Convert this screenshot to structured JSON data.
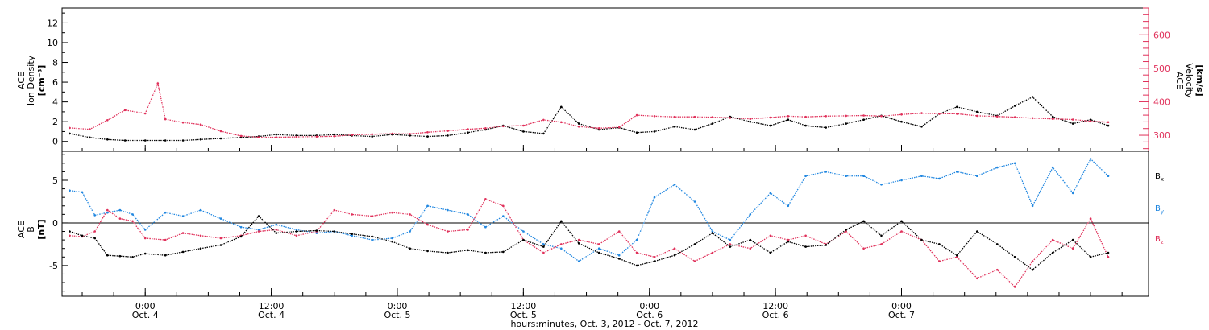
{
  "colors": {
    "black": "#000000",
    "red": "#e0305a",
    "blue": "#1f86e0",
    "background": "#ffffff"
  },
  "chart_data": [
    {
      "type": "scatter",
      "panel": "top",
      "ylabel_lines": [
        "ACE",
        "Ion Density",
        "[cm⁻³]"
      ],
      "y2label_lines": [
        "ACE",
        "Velocity",
        "[km/s]"
      ],
      "ylim": [
        -1,
        13.5
      ],
      "yticks": [
        "0",
        "2",
        "4",
        "6",
        "8",
        "10",
        "12"
      ],
      "y2lim": [
        252,
        680
      ],
      "y2ticks": [
        "300",
        "400",
        "500",
        "600"
      ],
      "series": [
        {
          "axis": "left",
          "color": "#000000",
          "x": [
            -0.3,
            -0.22,
            -0.15,
            -0.08,
            0.0,
            0.08,
            0.15,
            0.22,
            0.3,
            0.38,
            0.45,
            0.52,
            0.6,
            0.68,
            0.75,
            0.82,
            0.9,
            0.98,
            1.05,
            1.12,
            1.2,
            1.28,
            1.35,
            1.42,
            1.5,
            1.58,
            1.65,
            1.72,
            1.8,
            1.88,
            1.95,
            2.02,
            2.1,
            2.18,
            2.25,
            2.32,
            2.4,
            2.48,
            2.55,
            2.62,
            2.7,
            2.78,
            2.85,
            2.92,
            3.0,
            3.08,
            3.15,
            3.22,
            3.3,
            3.38,
            3.45,
            3.52,
            3.6,
            3.68,
            3.75,
            3.82
          ],
          "y": [
            0.8,
            0.4,
            0.2,
            0.1,
            0.1,
            0.1,
            0.1,
            0.2,
            0.3,
            0.4,
            0.5,
            0.7,
            0.6,
            0.6,
            0.7,
            0.6,
            0.5,
            0.7,
            0.6,
            0.5,
            0.6,
            0.9,
            1.2,
            1.6,
            1.0,
            0.8,
            3.5,
            1.8,
            1.2,
            1.4,
            0.9,
            1.0,
            1.5,
            1.2,
            1.8,
            2.5,
            2.0,
            1.6,
            2.2,
            1.6,
            1.4,
            1.8,
            2.2,
            2.6,
            2.0,
            1.5,
            2.8,
            3.5,
            3.0,
            2.6,
            3.6,
            4.5,
            2.5,
            1.8,
            2.2,
            1.6
          ]
        },
        {
          "axis": "right",
          "color": "#e0305a",
          "x": [
            -0.3,
            -0.22,
            -0.15,
            -0.08,
            0.0,
            0.05,
            0.08,
            0.15,
            0.22,
            0.3,
            0.38,
            0.45,
            0.52,
            0.6,
            0.68,
            0.75,
            0.82,
            0.9,
            0.98,
            1.05,
            1.12,
            1.2,
            1.28,
            1.35,
            1.42,
            1.5,
            1.58,
            1.65,
            1.72,
            1.8,
            1.88,
            1.95,
            2.02,
            2.1,
            2.18,
            2.25,
            2.32,
            2.4,
            2.48,
            2.55,
            2.62,
            2.7,
            2.78,
            2.85,
            2.92,
            3.0,
            3.08,
            3.15,
            3.22,
            3.3,
            3.38,
            3.45,
            3.52,
            3.6,
            3.68,
            3.75,
            3.82
          ],
          "y": [
            322,
            318,
            345,
            375,
            365,
            455,
            348,
            338,
            332,
            312,
            298,
            294,
            294,
            295,
            296,
            297,
            301,
            303,
            305,
            304,
            309,
            313,
            318,
            321,
            327,
            329,
            346,
            339,
            326,
            321,
            324,
            360,
            357,
            355,
            355,
            354,
            352,
            349,
            353,
            357,
            355,
            357,
            358,
            359,
            357,
            362,
            366,
            364,
            364,
            358,
            356,
            354,
            351,
            349,
            347,
            342,
            339
          ]
        }
      ]
    },
    {
      "type": "scatter",
      "panel": "bottom",
      "ylabel_lines": [
        "ACE",
        "B",
        "[nT]"
      ],
      "ylim": [
        -8.6,
        8.4
      ],
      "yticks": [
        "-5",
        "0",
        "5"
      ],
      "legend_location": "right",
      "legend": [
        {
          "label": "B",
          "sub": "x",
          "color": "#000000"
        },
        {
          "label": "B",
          "sub": "y",
          "color": "#1f86e0"
        },
        {
          "label": "B",
          "sub": "z",
          "color": "#e0305a"
        }
      ],
      "series": [
        {
          "name": "Bx",
          "color": "#000000",
          "x": [
            -0.3,
            -0.25,
            -0.2,
            -0.15,
            -0.1,
            -0.05,
            0.0,
            0.08,
            0.15,
            0.22,
            0.3,
            0.38,
            0.45,
            0.52,
            0.6,
            0.68,
            0.75,
            0.82,
            0.9,
            0.98,
            1.05,
            1.12,
            1.2,
            1.28,
            1.35,
            1.42,
            1.5,
            1.58,
            1.65,
            1.72,
            1.8,
            1.88,
            1.95,
            2.02,
            2.1,
            2.18,
            2.25,
            2.32,
            2.4,
            2.48,
            2.55,
            2.62,
            2.7,
            2.78,
            2.85,
            2.92,
            3.0,
            3.08,
            3.15,
            3.22,
            3.3,
            3.38,
            3.45,
            3.52,
            3.6,
            3.68,
            3.75,
            3.82
          ],
          "y": [
            -1.0,
            -1.5,
            -1.8,
            -3.8,
            -3.9,
            -4.0,
            -3.6,
            -3.8,
            -3.4,
            -3.0,
            -2.6,
            -1.6,
            0.8,
            -1.2,
            -1.0,
            -0.9,
            -1.0,
            -1.3,
            -1.6,
            -2.2,
            -3.0,
            -3.3,
            -3.5,
            -3.2,
            -3.5,
            -3.4,
            -2.0,
            -2.8,
            0.2,
            -2.4,
            -3.5,
            -4.2,
            -5.0,
            -4.5,
            -3.8,
            -2.5,
            -1.2,
            -2.8,
            -2.0,
            -3.5,
            -2.2,
            -2.8,
            -2.6,
            -0.8,
            0.2,
            -1.5,
            0.2,
            -2.0,
            -2.5,
            -3.8,
            -1.0,
            -2.5,
            -4.0,
            -5.5,
            -3.5,
            -2.0,
            -4.0,
            -3.5
          ]
        },
        {
          "name": "By",
          "color": "#1f86e0",
          "x": [
            -0.3,
            -0.25,
            -0.2,
            -0.15,
            -0.1,
            -0.05,
            0.0,
            0.08,
            0.15,
            0.22,
            0.3,
            0.38,
            0.45,
            0.52,
            0.6,
            0.68,
            0.75,
            0.82,
            0.9,
            0.98,
            1.05,
            1.12,
            1.2,
            1.28,
            1.35,
            1.42,
            1.5,
            1.58,
            1.65,
            1.72,
            1.8,
            1.88,
            1.95,
            2.02,
            2.1,
            2.18,
            2.25,
            2.32,
            2.4,
            2.48,
            2.55,
            2.62,
            2.7,
            2.78,
            2.85,
            2.92,
            3.0,
            3.08,
            3.15,
            3.22,
            3.3,
            3.38,
            3.45,
            3.52,
            3.6,
            3.68,
            3.75,
            3.82
          ],
          "y": [
            3.8,
            3.6,
            0.9,
            1.2,
            1.5,
            1.0,
            -0.8,
            1.2,
            0.8,
            1.5,
            0.5,
            -0.5,
            -0.8,
            -0.2,
            -0.8,
            -1.2,
            -1.0,
            -1.5,
            -2.0,
            -1.8,
            -1.0,
            2.0,
            1.5,
            1.0,
            -0.5,
            0.8,
            -1.0,
            -2.5,
            -3.0,
            -4.5,
            -3.0,
            -3.8,
            -2.0,
            3.0,
            4.5,
            2.5,
            -1.0,
            -2.0,
            1.0,
            3.5,
            2.0,
            5.5,
            6.0,
            5.5,
            5.5,
            4.5,
            5.0,
            5.5,
            5.2,
            6.0,
            5.5,
            6.5,
            7.0,
            2.0,
            6.5,
            3.5,
            7.5,
            5.5
          ]
        },
        {
          "name": "Bz",
          "color": "#e0305a",
          "x": [
            -0.3,
            -0.25,
            -0.2,
            -0.15,
            -0.1,
            -0.05,
            0.0,
            0.08,
            0.15,
            0.22,
            0.3,
            0.38,
            0.45,
            0.52,
            0.6,
            0.68,
            0.75,
            0.82,
            0.9,
            0.98,
            1.05,
            1.12,
            1.2,
            1.28,
            1.35,
            1.42,
            1.5,
            1.58,
            1.65,
            1.72,
            1.8,
            1.88,
            1.95,
            2.02,
            2.1,
            2.18,
            2.25,
            2.32,
            2.4,
            2.48,
            2.55,
            2.62,
            2.7,
            2.78,
            2.85,
            2.92,
            3.0,
            3.08,
            3.15,
            3.22,
            3.3,
            3.38,
            3.45,
            3.52,
            3.6,
            3.68,
            3.75,
            3.82
          ],
          "y": [
            -1.5,
            -1.6,
            -1.0,
            1.5,
            0.5,
            0.2,
            -1.8,
            -2.0,
            -1.2,
            -1.5,
            -1.8,
            -1.5,
            -1.0,
            -0.8,
            -1.5,
            -1.0,
            1.5,
            1.0,
            0.8,
            1.2,
            1.0,
            -0.2,
            -1.0,
            -0.8,
            2.8,
            2.0,
            -2.0,
            -3.5,
            -2.5,
            -2.0,
            -2.5,
            -1.0,
            -3.5,
            -4.0,
            -3.0,
            -4.5,
            -3.5,
            -2.5,
            -3.0,
            -1.5,
            -2.0,
            -1.5,
            -2.5,
            -1.0,
            -3.0,
            -2.5,
            -1.0,
            -2.0,
            -4.5,
            -4.0,
            -6.5,
            -5.5,
            -7.5,
            -4.5,
            -2.0,
            -3.0,
            0.5,
            -4.0
          ]
        }
      ]
    }
  ],
  "x_axis": {
    "xlim": [
      -0.33,
      3.98
    ],
    "ticks": [
      {
        "x": 0.0,
        "time": "0:00",
        "date": "Oct. 4"
      },
      {
        "x": 0.5,
        "time": "12:00",
        "date": "Oct. 4"
      },
      {
        "x": 1.0,
        "time": "0:00",
        "date": "Oct. 5"
      },
      {
        "x": 1.5,
        "time": "12:00",
        "date": "Oct. 5"
      },
      {
        "x": 2.0,
        "time": "0:00",
        "date": "Oct. 6"
      },
      {
        "x": 2.5,
        "time": "12:00",
        "date": "Oct. 6"
      },
      {
        "x": 3.0,
        "time": "0:00",
        "date": "Oct. 7"
      }
    ],
    "label": "hours:minutes, Oct.  3, 2012 - Oct.  7, 2012"
  }
}
